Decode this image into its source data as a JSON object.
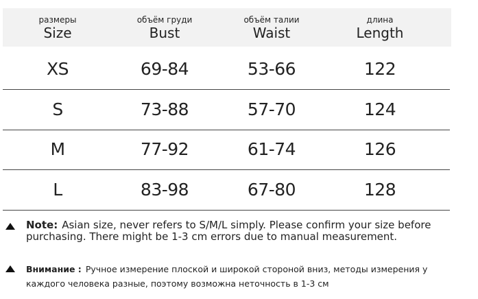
{
  "table": {
    "header": [
      {
        "ru": "размеры",
        "en": "Size"
      },
      {
        "ru": "объём груди",
        "en": "Bust"
      },
      {
        "ru": "объём талии",
        "en": "Waist"
      },
      {
        "ru": "длина",
        "en": "Length"
      }
    ],
    "rows": [
      [
        "XS",
        "69-84",
        "53-66",
        "122"
      ],
      [
        "S",
        "73-88",
        "57-70",
        "124"
      ],
      [
        "M",
        "77-92",
        "61-74",
        "126"
      ],
      [
        "L",
        "83-98",
        "67-80",
        "128"
      ]
    ]
  },
  "notes": [
    {
      "label": "Note:",
      "text": "Asian size, never refers to S/M/L simply. Please confirm your size before purchasing. There might be 1-3 cm errors due to manual measurement."
    },
    {
      "label": "Внимание :",
      "text": "Ручное измерение плоской и широкой стороной вниз, методы измерения у каждого человека разные, поэтому возможна неточность в 1-3 см"
    }
  ]
}
